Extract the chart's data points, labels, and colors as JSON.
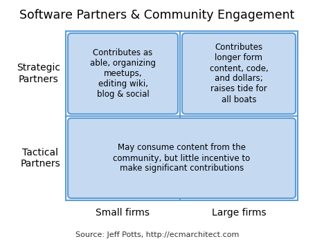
{
  "title": "Software Partners & Community Engagement",
  "title_fontsize": 12.5,
  "background_color": "#ffffff",
  "grid_border_color": "#5b9bd5",
  "box_fill_color": "#c5d9f1",
  "box_border_color": "#5b9bd5",
  "row_labels": [
    "Strategic\nPartners",
    "Tactical\nPartners"
  ],
  "col_labels": [
    "Small firms",
    "Large firms"
  ],
  "source_text": "Source: Jeff Potts, http://ecmarchitect.com",
  "cell_texts": [
    [
      "Contributes as\nable, organizing\nmeetups,\nediting wiki,\nblog & social",
      "Contributes\nlonger form\ncontent, code,\nand dollars;\nraises tide for\nall boats"
    ],
    [
      "May consume content from the\ncommunity, but little incentive to\nmake significant contributions",
      null
    ]
  ],
  "text_fontsize": 8.5,
  "label_fontsize": 10,
  "source_fontsize": 8
}
